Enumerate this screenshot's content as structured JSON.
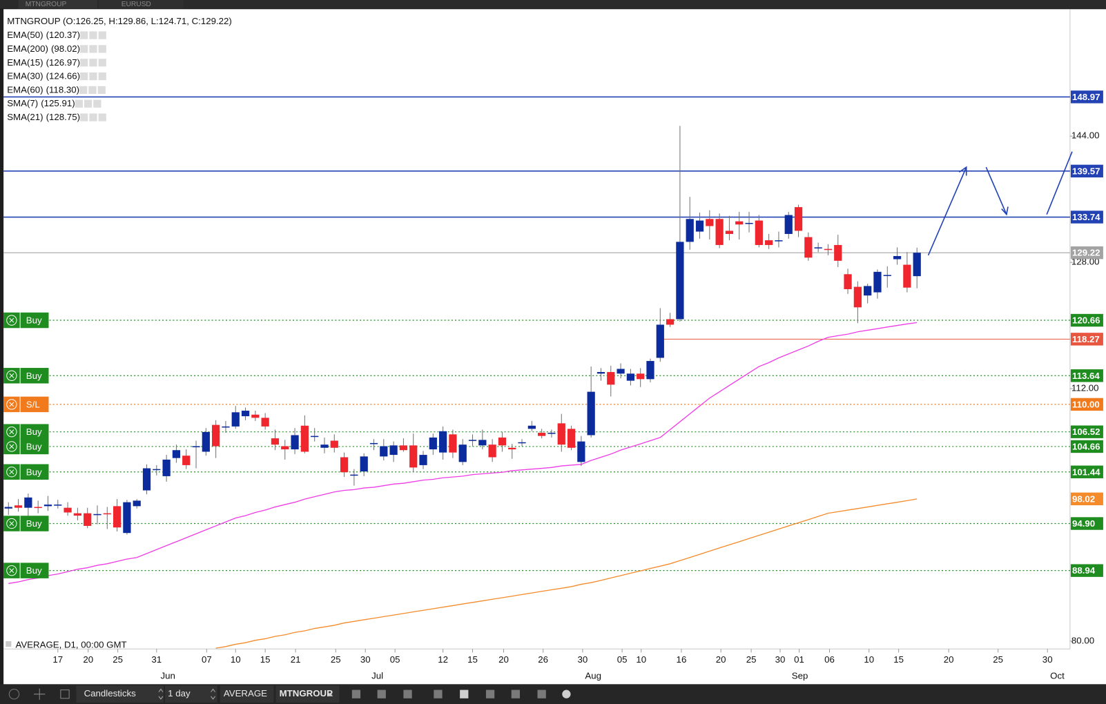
{
  "tabs": [
    "MTNGROUP",
    "EURUSD"
  ],
  "toolbar": {
    "chart_type": "Candlesticks",
    "timeframe": "1 day",
    "template": "AVERAGE",
    "symbol": "MTNGROUP"
  },
  "chart_data": {
    "type": "candlestick",
    "title": "MTNGROUP (O:126.25, H:129.86, L:124.71, C:129.22)",
    "footer": "AVERAGE, D1, 00:00 GMT",
    "indicators": [
      {
        "name": "EMA(50)",
        "value": "(120.37)",
        "color": "#ee3ce6",
        "values": [
          87.3,
          87.5,
          87.8,
          88.0,
          88.3,
          88.5,
          88.8,
          89.1,
          89.3,
          89.6,
          89.8,
          90.1,
          90.4,
          90.6,
          91.1,
          91.6,
          92.1,
          92.6,
          93.1,
          93.6,
          94.1,
          94.6,
          95.1,
          95.6,
          95.9,
          96.3,
          96.6,
          97.0,
          97.3,
          97.6,
          98.0,
          98.3,
          98.6,
          98.9,
          99.1,
          99.2,
          99.4,
          99.5,
          99.7,
          99.9,
          100.0,
          100.2,
          100.4,
          100.5,
          100.7,
          100.8,
          100.9,
          101.1,
          101.2,
          101.3,
          101.4,
          101.6,
          101.7,
          101.8,
          101.9,
          102.0,
          102.2,
          102.3,
          102.4,
          102.9,
          103.3,
          103.7,
          104.2,
          104.6,
          105.0,
          105.4,
          105.8,
          106.8,
          107.8,
          108.8,
          109.8,
          110.8,
          111.6,
          112.4,
          113.2,
          114.0,
          114.8,
          115.3,
          115.9,
          116.4,
          116.9,
          117.4,
          118.0,
          118.5,
          118.7,
          118.9,
          119.2,
          119.4,
          119.6,
          119.8,
          120.0,
          120.2,
          120.37
        ]
      },
      {
        "name": "EMA(200)",
        "value": "(98.02)",
        "color": "#f58a2a",
        "values": [
          null,
          null,
          null,
          null,
          null,
          null,
          null,
          null,
          null,
          null,
          null,
          null,
          null,
          null,
          null,
          null,
          null,
          null,
          null,
          null,
          null,
          79.1,
          79.3,
          79.6,
          79.8,
          80.1,
          80.3,
          80.6,
          80.8,
          81.1,
          81.3,
          81.6,
          81.8,
          82.0,
          82.3,
          82.5,
          82.7,
          82.9,
          83.1,
          83.3,
          83.5,
          83.7,
          83.9,
          84.1,
          84.3,
          84.5,
          84.7,
          84.9,
          85.1,
          85.3,
          85.5,
          85.7,
          85.9,
          86.1,
          86.3,
          86.5,
          86.7,
          86.9,
          87.2,
          87.4,
          87.7,
          88.0,
          88.3,
          88.6,
          88.9,
          89.2,
          89.5,
          89.8,
          90.2,
          90.6,
          91.0,
          91.4,
          91.8,
          92.2,
          92.6,
          93.0,
          93.4,
          93.8,
          94.2,
          94.6,
          95.0,
          95.4,
          95.8,
          96.2,
          96.4,
          96.6,
          96.8,
          97.0,
          97.2,
          97.4,
          97.6,
          97.8,
          98.02
        ]
      },
      {
        "name": "EMA(15)",
        "value": "(126.97)"
      },
      {
        "name": "EMA(30)",
        "value": "(124.66)"
      },
      {
        "name": "EMA(60)",
        "value": "(118.30)"
      },
      {
        "name": "SMA(7)",
        "value": "(125.91)"
      },
      {
        "name": "SMA(21)",
        "value": "(128.75)"
      }
    ],
    "series": [
      {
        "name": "MTNGROUP",
        "up_color": "#0c2c9e",
        "down_color": "#f0262e",
        "wick_color": "#707070",
        "open": [
          96.8,
          97.2,
          96.9,
          97.0,
          97.1,
          97.2,
          96.9,
          96.2,
          96.2,
          96.0,
          96.2,
          97.1,
          93.7,
          97.1,
          99.1,
          101.7,
          100.9,
          103.2,
          103.5,
          104.6,
          104.0,
          107.4,
          107.1,
          107.2,
          108.5,
          108.7,
          108.3,
          105.7,
          104.7,
          104.3,
          107.3,
          105.9,
          104.5,
          105.4,
          103.3,
          101.0,
          101.5,
          105.0,
          103.4,
          103.6,
          104.8,
          104.8,
          102.3,
          104.3,
          103.9,
          106.2,
          102.7,
          105.4,
          104.8,
          104.9,
          105.8,
          104.5,
          105.1,
          106.9,
          106.4,
          106.3,
          107.6,
          106.9,
          102.7,
          106.1,
          113.9,
          114.1,
          113.9,
          113.0,
          113.9,
          113.2,
          115.9,
          120.8,
          120.8,
          130.6,
          131.9,
          133.5,
          133.5,
          132.0,
          133.2,
          132.9,
          133.3,
          130.8,
          130.7,
          131.6,
          135.0,
          131.2,
          129.9,
          129.7,
          130.2,
          126.5,
          124.9,
          123.8,
          124.2,
          126.3,
          128.4,
          127.7,
          126.25
        ],
        "high": [
          97.6,
          98.0,
          98.7,
          97.8,
          98.4,
          97.9,
          97.6,
          96.9,
          96.9,
          97.2,
          97.0,
          98.0,
          97.9,
          98.0,
          102.4,
          102.3,
          103.6,
          104.9,
          104.3,
          105.4,
          107.0,
          108.0,
          107.9,
          109.8,
          109.6,
          109.2,
          108.9,
          106.8,
          105.5,
          107.0,
          108.6,
          107.0,
          105.8,
          106.2,
          103.9,
          101.8,
          103.8,
          105.6,
          105.6,
          105.3,
          105.7,
          106.3,
          104.1,
          106.3,
          107.2,
          106.8,
          105.6,
          106.2,
          106.8,
          105.6,
          106.5,
          105.0,
          105.6,
          107.9,
          106.9,
          106.8,
          108.8,
          107.3,
          106.0,
          114.8,
          114.6,
          114.9,
          115.2,
          114.5,
          114.6,
          115.8,
          122.2,
          121.6,
          145.3,
          136.3,
          134.3,
          134.6,
          134.2,
          133.9,
          134.4,
          134.4,
          134.0,
          131.6,
          131.9,
          134.4,
          135.3,
          131.8,
          130.5,
          130.3,
          131.5,
          127.2,
          125.6,
          125.3,
          127.1,
          127.5,
          129.9,
          129.3,
          129.86
        ],
        "low": [
          96.0,
          96.4,
          95.8,
          96.2,
          96.5,
          96.8,
          95.9,
          95.3,
          94.3,
          94.8,
          94.2,
          93.9,
          93.5,
          96.8,
          98.6,
          101.0,
          100.2,
          102.6,
          101.8,
          101.9,
          103.5,
          103.2,
          106.4,
          106.9,
          108.0,
          107.9,
          106.8,
          104.2,
          103.0,
          103.7,
          103.8,
          105.3,
          103.8,
          103.9,
          100.8,
          99.7,
          100.9,
          104.2,
          102.9,
          102.7,
          104.0,
          101.4,
          101.8,
          103.6,
          103.0,
          103.2,
          102.3,
          104.7,
          104.3,
          102.7,
          104.0,
          103.1,
          104.7,
          106.6,
          105.7,
          105.8,
          104.0,
          104.2,
          102.2,
          105.8,
          113.0,
          111.0,
          113.3,
          112.4,
          112.2,
          112.8,
          115.4,
          119.8,
          120.5,
          129.6,
          131.0,
          130.9,
          129.8,
          130.8,
          130.9,
          131.8,
          129.9,
          129.7,
          129.9,
          131.0,
          131.2,
          128.2,
          129.3,
          128.9,
          127.4,
          124.0,
          120.3,
          122.8,
          123.4,
          124.8,
          127.7,
          124.2,
          124.71
        ],
        "close": [
          97.0,
          96.9,
          98.2,
          96.9,
          97.3,
          97.3,
          96.3,
          95.9,
          94.6,
          96.1,
          96.1,
          94.4,
          97.6,
          97.8,
          101.9,
          101.8,
          103.0,
          104.2,
          102.3,
          104.7,
          106.5,
          104.7,
          107.2,
          109.0,
          109.2,
          108.3,
          107.2,
          104.9,
          104.3,
          106.1,
          104.0,
          106.0,
          104.9,
          104.5,
          101.4,
          101.1,
          103.4,
          105.1,
          104.7,
          104.8,
          104.2,
          102.0,
          103.6,
          105.8,
          106.6,
          103.9,
          104.9,
          105.5,
          105.5,
          103.3,
          104.8,
          104.3,
          105.2,
          107.3,
          106.0,
          106.4,
          104.9,
          104.5,
          105.3,
          111.6,
          114.1,
          112.5,
          114.5,
          113.9,
          113.2,
          115.5,
          120.1,
          120.1,
          130.6,
          133.5,
          133.3,
          132.6,
          130.2,
          131.6,
          132.8,
          133.0,
          130.2,
          130.2,
          130.8,
          134.0,
          132.0,
          128.6,
          129.9,
          129.6,
          128.2,
          124.6,
          122.3,
          125.0,
          126.8,
          126.4,
          128.8,
          124.8,
          129.22
        ]
      }
    ],
    "ylim": [
      79,
      160
    ],
    "yticks": [
      {
        "value": 80,
        "label": "80.00"
      },
      {
        "value": 112,
        "label": "112.00"
      },
      {
        "value": 128,
        "label": "128.00"
      },
      {
        "value": 144,
        "label": "144.00"
      }
    ],
    "x_labels": [
      "17",
      "20",
      "25",
      "31",
      "07",
      "10",
      "15",
      "21",
      "25",
      "30",
      "05",
      "12",
      "15",
      "20",
      "26",
      "30",
      "05",
      "10",
      "16",
      "20",
      "25",
      "30",
      "01",
      "06",
      "10",
      "15",
      "20",
      "25",
      "30"
    ],
    "month_labels": [
      "Jun",
      "Jul",
      "Aug",
      "Sep",
      "Oct"
    ],
    "levels": [
      {
        "value": 148.97,
        "kind": "resistance",
        "color": "#2343b5"
      },
      {
        "value": 139.57,
        "kind": "resistance",
        "color": "#2343b5"
      },
      {
        "value": 133.74,
        "kind": "resistance",
        "color": "#2343b5"
      },
      {
        "value": 129.22,
        "kind": "price",
        "color": "#a3a3a3"
      },
      {
        "value": 120.66,
        "kind": "order",
        "order": "Buy",
        "color": "#1e8c1e"
      },
      {
        "value": 118.27,
        "kind": "stop",
        "color": "#e8563f"
      },
      {
        "value": 113.64,
        "kind": "order",
        "order": "Buy",
        "color": "#1e8c1e"
      },
      {
        "value": 110,
        "label": "110.00",
        "kind": "order",
        "order": "S/L",
        "color": "#f07a1c"
      },
      {
        "value": 106.52,
        "kind": "order",
        "order": "Buy",
        "color": "#1e8c1e"
      },
      {
        "value": 104.66,
        "kind": "order",
        "order": "Buy",
        "color": "#1e8c1e"
      },
      {
        "value": 101.44,
        "kind": "order",
        "order": "Buy",
        "color": "#1e8c1e"
      },
      {
        "value": 98.02,
        "kind": "indicator",
        "color": "#f58a2a"
      },
      {
        "value": 94.9,
        "label": "94.90",
        "kind": "order",
        "order": "Buy",
        "color": "#1e8c1e"
      },
      {
        "value": 88.94,
        "kind": "order",
        "order": "Buy",
        "color": "#1e8c1e"
      }
    ]
  }
}
